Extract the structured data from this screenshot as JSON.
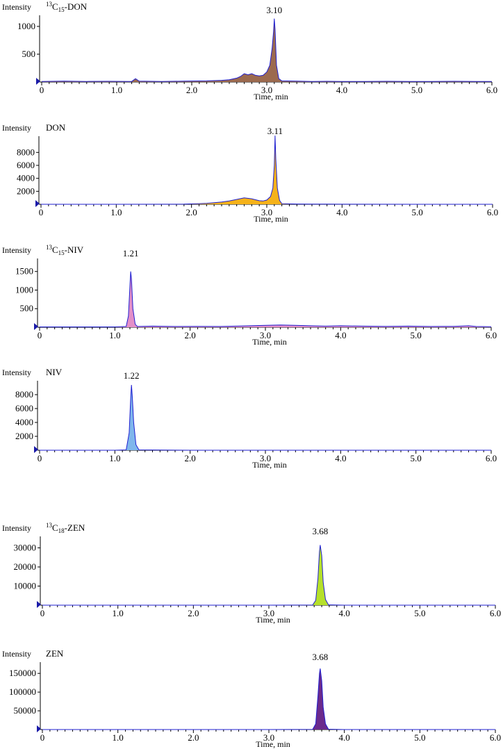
{
  "chart_data": [
    {
      "type": "line",
      "title_sup": "13",
      "title_base": "C",
      "title_sub": "15",
      "title_rest": "-DON",
      "ylabel": "Intensity",
      "xlabel": "Time, min",
      "x_ticks": [
        "0",
        "1.0",
        "2.0",
        "3.0",
        "4.0",
        "5.0",
        "6.0"
      ],
      "y_ticks": [
        500,
        1000
      ],
      "y_tick_labels": [
        "500",
        "1000"
      ],
      "xlim": [
        0,
        6.0
      ],
      "ylim": [
        0,
        1200
      ],
      "peak_label": "3.10",
      "peak_x": 3.1,
      "fill_color": "#9c6a4f",
      "x": [
        0.0,
        0.3,
        0.6,
        0.9,
        1.2,
        1.25,
        1.3,
        1.6,
        1.9,
        2.2,
        2.4,
        2.5,
        2.6,
        2.65,
        2.7,
        2.75,
        2.8,
        2.85,
        2.9,
        2.95,
        3.0,
        3.04,
        3.07,
        3.09,
        3.1,
        3.11,
        3.13,
        3.16,
        3.2,
        3.4,
        3.6,
        3.8,
        4.0,
        4.3,
        4.6,
        4.9,
        5.2,
        5.5,
        5.8,
        6.0
      ],
      "y": [
        10,
        15,
        10,
        12,
        10,
        60,
        15,
        10,
        15,
        20,
        30,
        40,
        70,
        100,
        150,
        130,
        150,
        120,
        110,
        120,
        180,
        300,
        600,
        900,
        1140,
        950,
        300,
        60,
        20,
        15,
        10,
        12,
        10,
        10,
        12,
        10,
        10,
        12,
        10,
        10
      ]
    },
    {
      "type": "line",
      "title_sup": "",
      "title_base": "DON",
      "title_sub": "",
      "title_rest": "",
      "ylabel": "Intensity",
      "xlabel": "Time, min",
      "x_ticks": [
        "0",
        "1.0",
        "2.0",
        "3.0",
        "4.0",
        "5.0",
        "6.0"
      ],
      "y_ticks": [
        2000,
        4000,
        6000,
        8000
      ],
      "y_tick_labels": [
        "2000",
        "4000",
        "6000",
        "8000"
      ],
      "xlim": [
        0,
        6.0
      ],
      "ylim": [
        0,
        10500
      ],
      "peak_label": "3.11",
      "peak_x": 3.11,
      "fill_color": "#f5b21a",
      "x": [
        0.0,
        1.0,
        1.9,
        2.0,
        2.1,
        2.2,
        2.3,
        2.4,
        2.5,
        2.6,
        2.7,
        2.8,
        2.9,
        2.95,
        3.0,
        3.05,
        3.08,
        3.1,
        3.11,
        3.12,
        3.14,
        3.17,
        3.2,
        3.4,
        3.6,
        3.8,
        4.0,
        5.0,
        6.0
      ],
      "y": [
        0,
        0,
        20,
        60,
        100,
        150,
        250,
        350,
        500,
        750,
        1000,
        850,
        550,
        500,
        650,
        1200,
        2500,
        6000,
        10600,
        7000,
        2500,
        600,
        100,
        40,
        30,
        20,
        10,
        5,
        0
      ]
    },
    {
      "type": "line",
      "title_sup": "13",
      "title_base": "C",
      "title_sub": "15",
      "title_rest": "-NIV",
      "ylabel": "Intensity",
      "xlabel": "Time, min",
      "x_ticks": [
        "0",
        "1.0",
        "2.0",
        "3.0",
        "4.0",
        "5.0",
        "6.0"
      ],
      "y_ticks": [
        500,
        1000,
        1500
      ],
      "y_tick_labels": [
        "500",
        "1000",
        "1500"
      ],
      "xlim": [
        0,
        6.0
      ],
      "ylim": [
        0,
        1850
      ],
      "peak_label": "1.21",
      "peak_x": 1.21,
      "fill_color": "#e38fc8",
      "x": [
        0.0,
        0.5,
        1.0,
        1.15,
        1.18,
        1.2,
        1.21,
        1.22,
        1.24,
        1.27,
        1.3,
        1.5,
        1.8,
        2.1,
        2.4,
        2.7,
        3.0,
        3.2,
        3.4,
        3.6,
        3.8,
        4.0,
        4.3,
        4.6,
        4.9,
        5.2,
        5.5,
        5.7,
        5.8,
        6.0
      ],
      "y": [
        10,
        10,
        10,
        20,
        300,
        1100,
        1500,
        1300,
        500,
        80,
        20,
        30,
        20,
        25,
        20,
        35,
        50,
        60,
        50,
        40,
        30,
        40,
        30,
        25,
        30,
        20,
        25,
        40,
        20,
        15
      ]
    },
    {
      "type": "line",
      "title_sup": "",
      "title_base": "NIV",
      "title_sub": "",
      "title_rest": "",
      "ylabel": "Intensity",
      "xlabel": "Time, min",
      "x_ticks": [
        "0",
        "1.0",
        "2.0",
        "3.0",
        "4.0",
        "5.0",
        "6.0"
      ],
      "y_ticks": [
        2000,
        4000,
        6000,
        8000
      ],
      "y_tick_labels": [
        "2000",
        "4000",
        "6000",
        "8000"
      ],
      "xlim": [
        0,
        6.0
      ],
      "ylim": [
        0,
        10000
      ],
      "peak_label": "1.22",
      "peak_x": 1.22,
      "fill_color": "#7fb6ec",
      "x": [
        0.0,
        1.0,
        1.15,
        1.19,
        1.21,
        1.22,
        1.23,
        1.25,
        1.28,
        1.32,
        2.0,
        3.0,
        4.0,
        5.0,
        6.0
      ],
      "y": [
        0,
        0,
        50,
        2500,
        7500,
        9400,
        8000,
        4000,
        800,
        50,
        0,
        0,
        0,
        0,
        0
      ]
    },
    {
      "type": "line",
      "title_sup": "13",
      "title_base": "C",
      "title_sub": "18",
      "title_rest": "-ZEN",
      "ylabel": "Intensity",
      "xlabel": "Time, min",
      "x_ticks": [
        "0",
        "1.0",
        "2.0",
        "3.0",
        "4.0",
        "5.0",
        "6.0"
      ],
      "y_ticks": [
        10000,
        20000,
        30000
      ],
      "y_tick_labels": [
        "10000",
        "20000",
        "30000"
      ],
      "xlim": [
        0,
        6.0
      ],
      "ylim": [
        0,
        36000
      ],
      "peak_label": "3.68",
      "peak_x": 3.68,
      "fill_color": "#b5e02a",
      "x": [
        0.0,
        3.0,
        3.58,
        3.62,
        3.65,
        3.67,
        3.68,
        3.7,
        3.72,
        3.75,
        3.79,
        4.0,
        5.0,
        6.0
      ],
      "y": [
        0,
        0,
        100,
        2500,
        14000,
        28000,
        31500,
        26000,
        12000,
        3000,
        200,
        0,
        0,
        0
      ]
    },
    {
      "type": "line",
      "title_sup": "",
      "title_base": "ZEN",
      "title_sub": "",
      "title_rest": "",
      "ylabel": "Intensity",
      "xlabel": "Time, min",
      "x_ticks": [
        "0",
        "1.0",
        "2.0",
        "3.0",
        "4.0",
        "5.0",
        "6.0"
      ],
      "y_ticks": [
        50000,
        100000,
        150000
      ],
      "y_tick_labels": [
        "50000",
        "100000",
        "150000"
      ],
      "xlim": [
        0,
        6.0
      ],
      "ylim": [
        0,
        180000
      ],
      "peak_label": "3.68",
      "peak_x": 3.68,
      "fill_color": "#6b2a8c",
      "x": [
        0.0,
        3.0,
        3.58,
        3.62,
        3.65,
        3.67,
        3.68,
        3.7,
        3.72,
        3.75,
        3.79,
        4.0,
        5.0,
        6.0
      ],
      "y": [
        0,
        0,
        500,
        15000,
        90000,
        150000,
        163000,
        130000,
        60000,
        15000,
        1000,
        0,
        0,
        0
      ]
    }
  ]
}
